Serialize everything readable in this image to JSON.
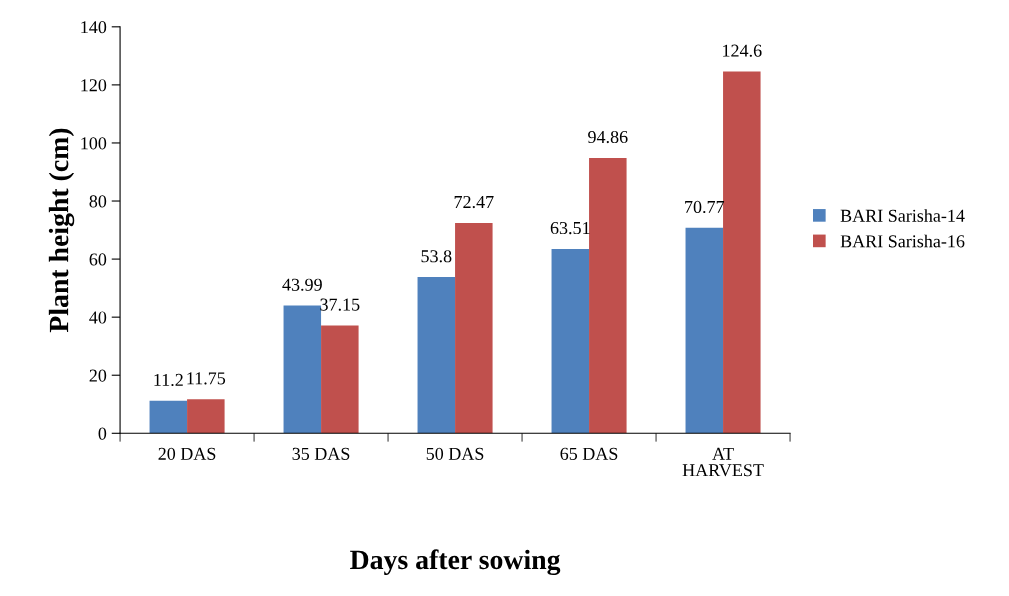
{
  "chart_data": {
    "type": "bar",
    "categories": [
      "20 DAS",
      "35 DAS",
      "50 DAS",
      "65 DAS",
      "AT\nHARVEST"
    ],
    "series": [
      {
        "name": "BARI Sarisha-14",
        "color": "#4f81bd",
        "values": [
          11.2,
          43.99,
          53.8,
          63.51,
          70.77
        ]
      },
      {
        "name": "BARI Sarisha-16",
        "color": "#c0504d",
        "values": [
          11.75,
          37.15,
          72.47,
          94.86,
          124.6
        ]
      }
    ],
    "xlabel": "Days after sowing",
    "ylabel": "Plant height (cm)",
    "ylim": [
      0,
      140
    ],
    "yticks": [
      0,
      20,
      40,
      60,
      80,
      100,
      120,
      140
    ],
    "data_labels": true,
    "legend": "right",
    "grid": false
  }
}
